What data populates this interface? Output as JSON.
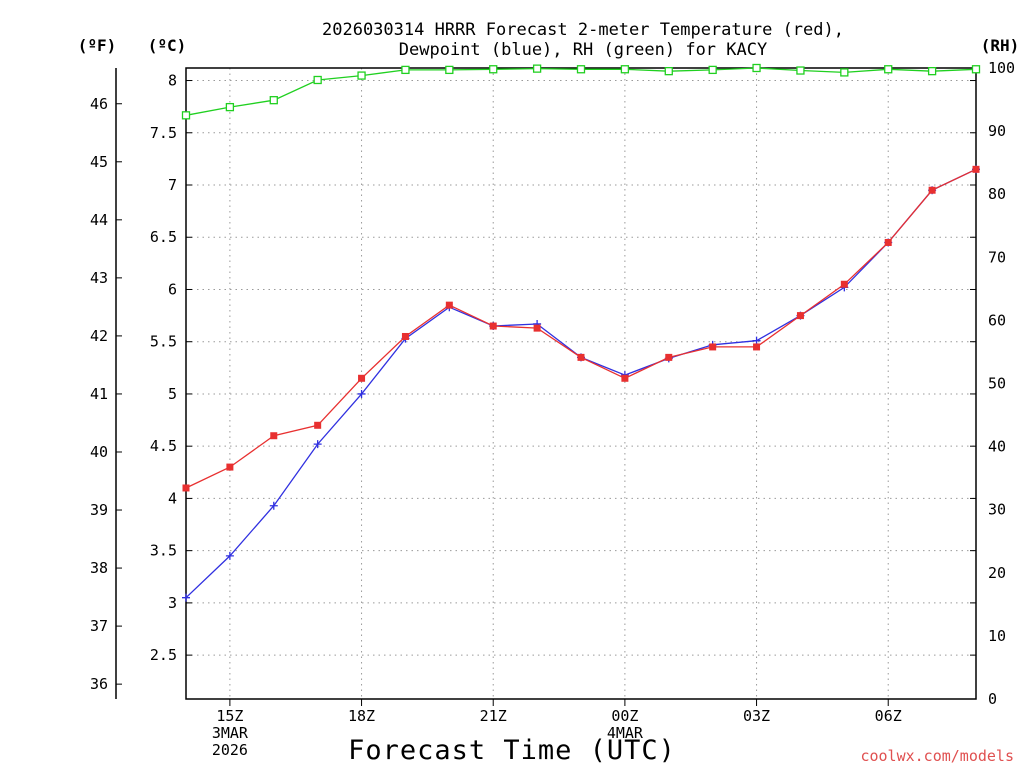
{
  "chart_data": {
    "type": "line",
    "title_lines": [
      "2026030314 HRRR Forecast 2-meter Temperature (red),",
      "Dewpoint (blue), RH (green) for KACY"
    ],
    "xlabel": "Forecast Time (UTC)",
    "credit": "coolwx.com/models",
    "x_ticks": [
      {
        "hour": 15,
        "labels": [
          "15Z",
          "3MAR",
          "2026"
        ]
      },
      {
        "hour": 18,
        "labels": [
          "18Z"
        ]
      },
      {
        "hour": 21,
        "labels": [
          "21Z"
        ]
      },
      {
        "hour": 24,
        "labels": [
          "00Z",
          "4MAR"
        ]
      },
      {
        "hour": 27,
        "labels": [
          "03Z"
        ]
      },
      {
        "hour": 30,
        "labels": [
          "06Z"
        ]
      }
    ],
    "xlim": [
      14,
      32
    ],
    "ylim_c": [
      2.08,
      8.12
    ],
    "ylim_rh": [
      0,
      100
    ],
    "y_left_c_unit": "(ºC)",
    "y_left_f_unit": "(ºF)",
    "y_right_unit": "(RH)",
    "celsius_ticks": [
      "2.5",
      "3",
      "3.5",
      "4",
      "4.5",
      "5",
      "5.5",
      "6",
      "6.5",
      "7",
      "7.5",
      "8"
    ],
    "fahrenheit_ticks": [
      "36",
      "37",
      "38",
      "39",
      "40",
      "41",
      "42",
      "43",
      "44",
      "45",
      "46"
    ],
    "rh_ticks": [
      "0",
      "10",
      "20",
      "30",
      "40",
      "50",
      "60",
      "70",
      "80",
      "90",
      "100"
    ],
    "x": [
      14,
      15,
      16,
      17,
      18,
      19,
      20,
      21,
      22,
      23,
      24,
      25,
      26,
      27,
      28,
      29,
      30,
      31,
      32
    ],
    "series": [
      {
        "name": "Temperature",
        "color": "#e83030",
        "marker": "square",
        "values": [
          4.1,
          4.3,
          4.6,
          4.7,
          5.15,
          5.55,
          5.85,
          5.65,
          5.63,
          5.35,
          5.15,
          5.35,
          5.45,
          5.45,
          5.75,
          6.05,
          6.45,
          6.95,
          7.15
        ]
      },
      {
        "name": "Dewpoint",
        "color": "#3030e0",
        "marker": "plus",
        "values": [
          3.05,
          3.45,
          3.93,
          4.52,
          5.0,
          5.53,
          5.83,
          5.65,
          5.67,
          5.35,
          5.18,
          5.34,
          5.47,
          5.51,
          5.75,
          6.02,
          6.45,
          6.95,
          7.15
        ]
      },
      {
        "name": "RH",
        "color": "#20d020",
        "marker": "open-square",
        "axis": "right",
        "values": [
          92.5,
          93.8,
          94.9,
          98.1,
          98.8,
          99.7,
          99.7,
          99.8,
          99.9,
          99.8,
          99.8,
          99.5,
          99.7,
          100.0,
          99.6,
          99.3,
          99.8,
          99.5,
          99.8
        ]
      }
    ]
  }
}
